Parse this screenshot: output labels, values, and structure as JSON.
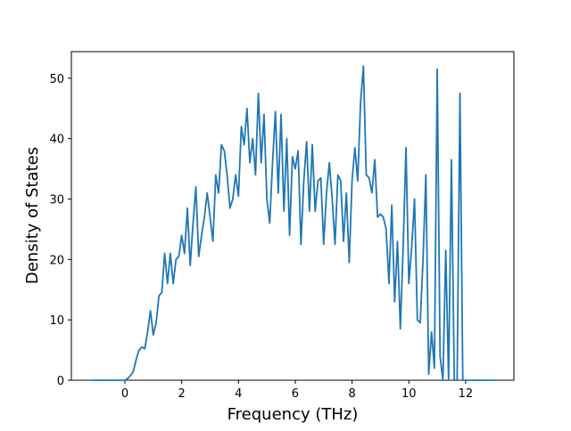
{
  "chart_data": {
    "type": "line",
    "xlabel": "Frequency (THz)",
    "ylabel": "Density of States",
    "x": [
      -1.2,
      -1.1,
      -1.0,
      -0.9,
      -0.8,
      -0.7,
      -0.6,
      -0.5,
      -0.4,
      -0.3,
      -0.2,
      -0.1,
      0.0,
      0.1,
      0.2,
      0.3,
      0.4,
      0.5,
      0.6,
      0.7,
      0.8,
      0.9,
      1.0,
      1.1,
      1.2,
      1.3,
      1.4,
      1.5,
      1.6,
      1.7,
      1.8,
      1.9,
      2.0,
      2.1,
      2.2,
      2.3,
      2.4,
      2.5,
      2.6,
      2.7,
      2.8,
      2.9,
      3.0,
      3.1,
      3.2,
      3.3,
      3.4,
      3.5,
      3.6,
      3.7,
      3.8,
      3.9,
      4.0,
      4.1,
      4.2,
      4.3,
      4.4,
      4.5,
      4.6,
      4.7,
      4.8,
      4.9,
      5.0,
      5.1,
      5.2,
      5.3,
      5.4,
      5.5,
      5.6,
      5.7,
      5.8,
      5.9,
      6.0,
      6.1,
      6.2,
      6.3,
      6.4,
      6.5,
      6.6,
      6.7,
      6.8,
      6.9,
      7.0,
      7.1,
      7.2,
      7.3,
      7.4,
      7.5,
      7.6,
      7.7,
      7.8,
      7.9,
      8.0,
      8.1,
      8.2,
      8.3,
      8.4,
      8.5,
      8.6,
      8.7,
      8.8,
      8.9,
      9.0,
      9.1,
      9.2,
      9.3,
      9.4,
      9.5,
      9.6,
      9.7,
      9.8,
      9.9,
      10.0,
      10.1,
      10.2,
      10.3,
      10.4,
      10.5,
      10.6,
      10.7,
      10.8,
      10.9,
      11.0,
      11.1,
      11.2,
      11.3,
      11.4,
      11.5,
      11.6,
      11.7,
      11.8,
      11.9,
      12.0,
      12.1,
      12.2,
      12.3,
      12.4,
      12.5,
      12.6,
      12.7,
      12.8,
      12.9,
      13.0
    ],
    "series": [
      {
        "color": "#1f77b4",
        "values": [
          0,
          0,
          0,
          0,
          0,
          0,
          0,
          0,
          0,
          0,
          0,
          0,
          0,
          0.3,
          0.8,
          1.5,
          3.5,
          5,
          5.5,
          5.2,
          8,
          11.5,
          7.5,
          9.5,
          14,
          14.5,
          21,
          16,
          21,
          16,
          20,
          20.5,
          24,
          21,
          28.5,
          19,
          26,
          32,
          20.5,
          24,
          27,
          31,
          27,
          23,
          34,
          31,
          39,
          38,
          34,
          28.5,
          30,
          34,
          30.5,
          42,
          39,
          45,
          36,
          40,
          34,
          47.5,
          36,
          44,
          30,
          26,
          36,
          44.5,
          31,
          44,
          28,
          40,
          24,
          37,
          35,
          38,
          22.5,
          33,
          39.5,
          28,
          39,
          28,
          33,
          33.5,
          22.5,
          31,
          36,
          30,
          22.5,
          34,
          33,
          23,
          31,
          19.5,
          33,
          38.5,
          33,
          46,
          52,
          34,
          33.5,
          31,
          36.5,
          27,
          27.5,
          27,
          25,
          16,
          29,
          13,
          23,
          8.5,
          22,
          38.5,
          16,
          22,
          30,
          10,
          9.5,
          20,
          34,
          1,
          8,
          2,
          51.5,
          4,
          0,
          21.5,
          0,
          36.5,
          0,
          0,
          47.5,
          0,
          0,
          0,
          0,
          0,
          0,
          0,
          0,
          0,
          0,
          0,
          0
        ]
      }
    ],
    "xlim": [
      -1.885,
      13.7
    ],
    "ylim": [
      0,
      54.4
    ],
    "xticks": [
      0,
      2,
      4,
      6,
      8,
      10,
      12
    ],
    "yticks": [
      0,
      10,
      20,
      30,
      40,
      50
    ]
  }
}
